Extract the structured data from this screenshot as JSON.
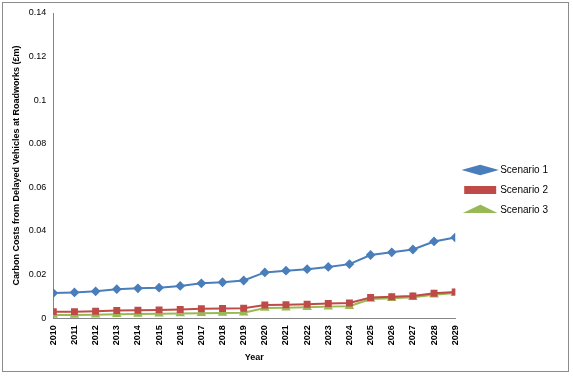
{
  "chart_data": {
    "type": "line",
    "y_label": "Carbon Costs from Delayed Vehicles at Roadworks (£m)",
    "x_label": "Year",
    "categories": [
      "2010",
      "2011",
      "2012",
      "2013",
      "2014",
      "2015",
      "2016",
      "2017",
      "2018",
      "2019",
      "2020",
      "2021",
      "2022",
      "2023",
      "2024",
      "2025",
      "2026",
      "2027",
      "2028",
      "2029"
    ],
    "series": [
      {
        "name": "Scenario 1",
        "color": "#4a7ebb",
        "marker": "diamond",
        "values": [
          0.0115,
          0.0118,
          0.0123,
          0.0133,
          0.0137,
          0.014,
          0.0148,
          0.016,
          0.0165,
          0.0173,
          0.021,
          0.0218,
          0.0225,
          0.0235,
          0.0248,
          0.029,
          0.0302,
          0.0315,
          0.0352,
          0.037
        ]
      },
      {
        "name": "Scenario 2",
        "color": "#be4b48",
        "marker": "square",
        "values": [
          0.003,
          0.003,
          0.0032,
          0.0035,
          0.0036,
          0.0038,
          0.004,
          0.0043,
          0.0044,
          0.0046,
          0.006,
          0.0062,
          0.0064,
          0.0067,
          0.007,
          0.0095,
          0.0098,
          0.0102,
          0.0114,
          0.012
        ]
      },
      {
        "name": "Scenario 3",
        "color": "#98b954",
        "marker": "triangle",
        "values": [
          0.0015,
          0.0015,
          0.0016,
          0.0018,
          0.0019,
          0.002,
          0.0021,
          0.0023,
          0.0024,
          0.0025,
          0.0047,
          0.0048,
          0.005,
          0.0053,
          0.0055,
          0.0088,
          0.0091,
          0.0096,
          0.0108,
          0.0115
        ]
      }
    ],
    "ylim": [
      0,
      0.14
    ],
    "yticks": [
      0,
      0.02,
      0.04,
      0.06,
      0.08,
      0.1,
      0.12,
      0.14
    ],
    "grid": false,
    "legend": "right"
  }
}
